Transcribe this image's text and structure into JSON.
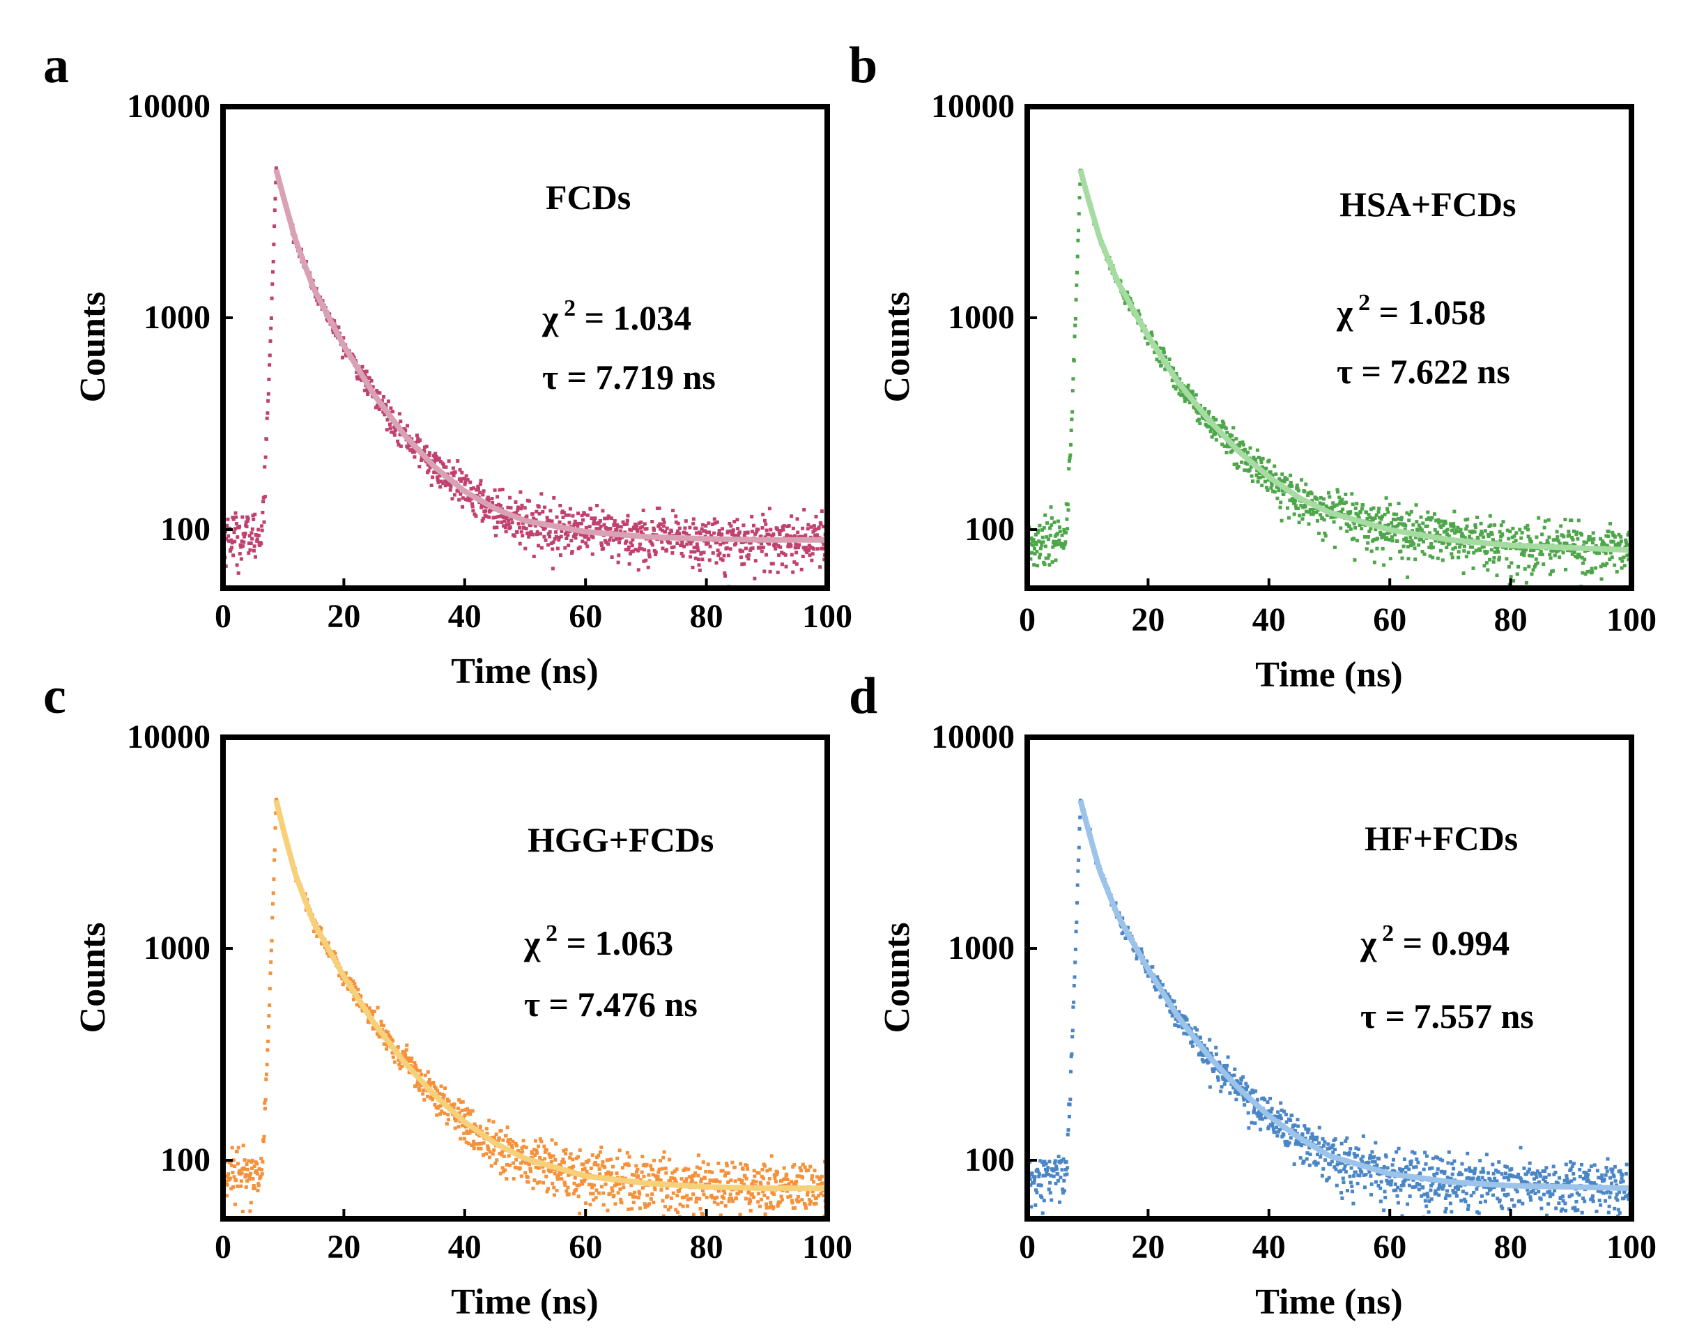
{
  "chart_data": [
    {
      "panel": "a",
      "type": "scatter",
      "xlabel": "Time (ns)",
      "ylabel": "Counts",
      "xlim": [
        0,
        100
      ],
      "ylim": [
        50,
        10000
      ],
      "yscale": "log",
      "xticks": [
        "0",
        "20",
        "40",
        "60",
        "80",
        "100"
      ],
      "yticks": [
        "100",
        "1000",
        "10000"
      ],
      "sample": "FCDs",
      "chi_label": "χ",
      "chi_sup": "2",
      "chi_value": " = 1.034",
      "tau_text": "τ = 7.719 ns",
      "tau_ns": 7.719,
      "baseline": 85,
      "pre_level": 90,
      "peak_time": 8.8,
      "peak_counts": 5000,
      "fit_x": [
        8.8,
        10,
        12,
        15,
        20,
        25,
        30,
        35,
        40,
        45,
        50,
        60,
        70,
        80,
        90,
        100
      ],
      "fit_y": [
        5000,
        3700,
        2300,
        1350,
        720,
        420,
        270,
        190,
        145,
        120,
        105,
        93,
        88,
        86,
        85,
        85
      ],
      "colors": {
        "points": "#c0406e",
        "fit": "#d9a2b4"
      }
    },
    {
      "panel": "b",
      "type": "scatter",
      "xlabel": "Time (ns)",
      "ylabel": "Counts",
      "xlim": [
        0,
        100
      ],
      "ylim": [
        50,
        10000
      ],
      "yscale": "log",
      "xticks": [
        "0",
        "20",
        "40",
        "60",
        "80",
        "100"
      ],
      "yticks": [
        "100",
        "1000",
        "10000"
      ],
      "sample": "HSA+FCDs",
      "chi_label": "χ",
      "chi_sup": "2",
      "chi_value": " = 1.058",
      "tau_text": "τ = 7.622 ns",
      "tau_ns": 7.622,
      "baseline": 75,
      "pre_level": 85,
      "peak_time": 8.8,
      "peak_counts": 5000,
      "fit_x": [
        8.8,
        10,
        12,
        15,
        20,
        25,
        30,
        35,
        40,
        45,
        50,
        60,
        70,
        80,
        90,
        100
      ],
      "fit_y": [
        5000,
        3700,
        2350,
        1450,
        800,
        480,
        320,
        225,
        170,
        135,
        115,
        95,
        85,
        80,
        78,
        76
      ],
      "colors": {
        "points": "#4ea64a",
        "fit": "#a6dca2"
      }
    },
    {
      "panel": "c",
      "type": "scatter",
      "xlabel": "Time (ns)",
      "ylabel": "Counts",
      "xlim": [
        0,
        100
      ],
      "ylim": [
        50,
        10000
      ],
      "yscale": "log",
      "xticks": [
        "0",
        "20",
        "40",
        "60",
        "80",
        "100"
      ],
      "yticks": [
        "100",
        "1000",
        "10000"
      ],
      "sample": "HGG+FCDs",
      "chi_label": "χ",
      "chi_sup": "2",
      "chi_value": " = 1.063",
      "tau_text": "τ = 7.476 ns",
      "tau_ns": 7.476,
      "baseline": 70,
      "pre_level": 80,
      "peak_time": 8.8,
      "peak_counts": 5000,
      "fit_x": [
        8.8,
        10,
        12,
        15,
        20,
        25,
        30,
        35,
        40,
        45,
        50,
        60,
        70,
        80,
        90,
        100
      ],
      "fit_y": [
        5000,
        3600,
        2200,
        1300,
        720,
        430,
        280,
        195,
        145,
        115,
        97,
        80,
        74,
        71,
        70,
        70
      ],
      "colors": {
        "points": "#f5913a",
        "fit": "#f7d07a"
      }
    },
    {
      "panel": "d",
      "type": "scatter",
      "xlabel": "Time (ns)",
      "ylabel": "Counts",
      "xlim": [
        0,
        100
      ],
      "ylim": [
        50,
        10000
      ],
      "yscale": "log",
      "xticks": [
        "0",
        "20",
        "40",
        "60",
        "80",
        "100"
      ],
      "yticks": [
        "100",
        "1000",
        "10000"
      ],
      "sample": "HF+FCDs",
      "chi_label": "χ",
      "chi_sup": "2",
      "chi_value": " = 0.994",
      "tau_text": "τ = 7.557 ns",
      "tau_ns": 7.557,
      "baseline": 70,
      "pre_level": 80,
      "peak_time": 8.8,
      "peak_counts": 5000,
      "fit_x": [
        8.8,
        10,
        12,
        15,
        20,
        25,
        30,
        35,
        40,
        45,
        50,
        60,
        70,
        80,
        90,
        100
      ],
      "fit_y": [
        5000,
        3700,
        2300,
        1400,
        780,
        460,
        300,
        210,
        155,
        122,
        100,
        82,
        75,
        72,
        71,
        70
      ],
      "colors": {
        "points": "#4a86c6",
        "fit": "#9cc3ea"
      }
    }
  ]
}
